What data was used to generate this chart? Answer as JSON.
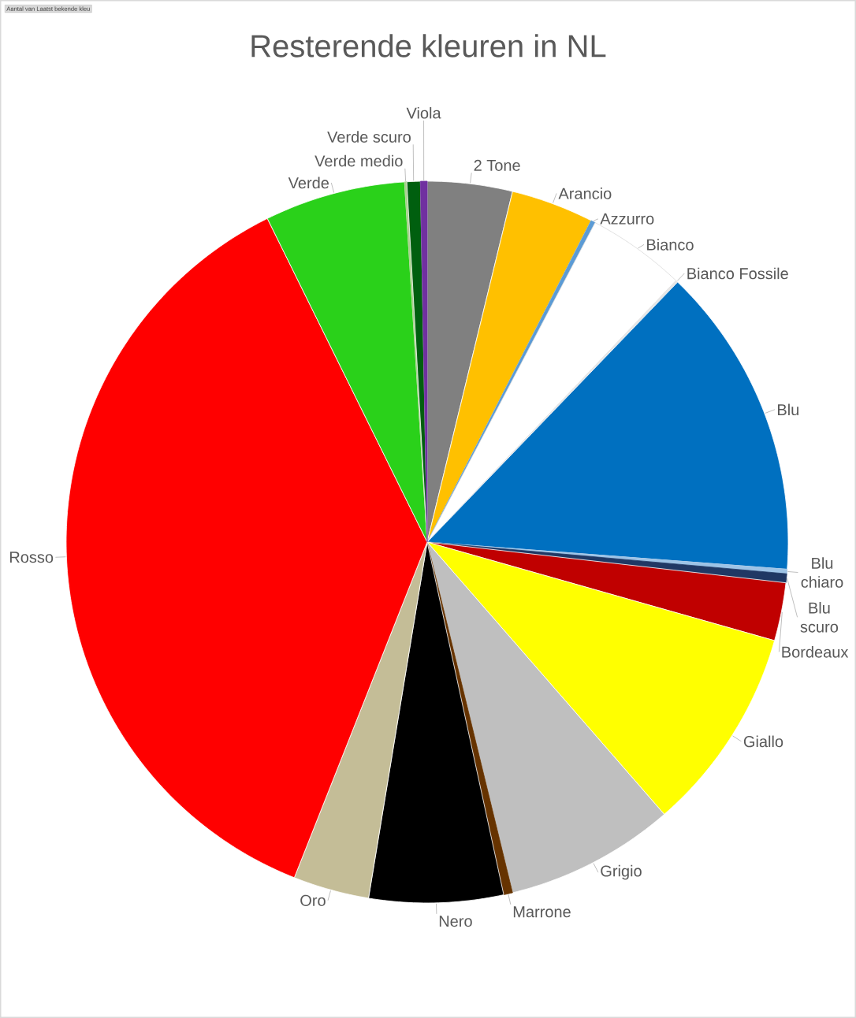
{
  "chart_data": {
    "type": "pie",
    "title": "Resterende kleuren in NL",
    "categories": [
      "2 Tone",
      "Arancio",
      "Azzurro",
      "Bianco",
      "Bianco Fossile",
      "Blu",
      "Blu chiaro",
      "Blu scuro",
      "Bordeaux",
      "Giallo",
      "Grigio",
      "Marrone",
      "Nero",
      "Oro",
      "Rosso",
      "Verde",
      "Verde medio",
      "Verde scuro",
      "Viola"
    ],
    "values": [
      3.8,
      3.7,
      0.2,
      4.4,
      0.1,
      14.0,
      0.2,
      0.4,
      2.6,
      9.2,
      7.6,
      0.4,
      6.0,
      3.4,
      36.7,
      6.3,
      0.1,
      0.6,
      0.3
    ],
    "colors": [
      "#808080",
      "#ffc000",
      "#5b9bd5",
      "#ffffff",
      "#e7e6e6",
      "#0070c0",
      "#9dc3e6",
      "#203864",
      "#c00000",
      "#ffff00",
      "#bfbfbf",
      "#663300",
      "#000000",
      "#c4bd97",
      "#ff0000",
      "#2ad11a",
      "#a9d18e",
      "#005f0f",
      "#7030a0"
    ],
    "annotations": [
      "Aantal van Laatst bekende kleu"
    ]
  }
}
